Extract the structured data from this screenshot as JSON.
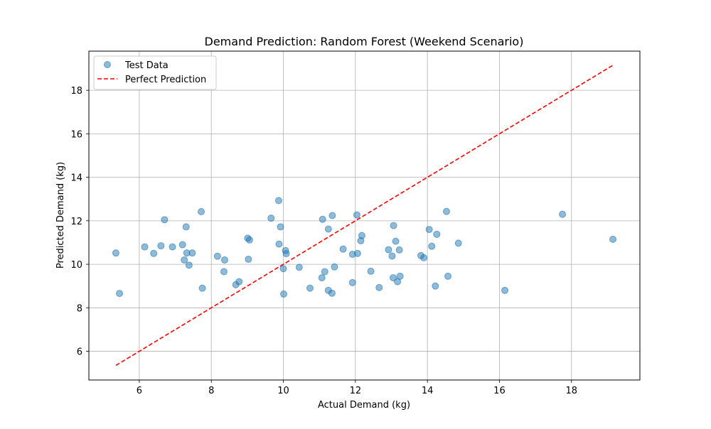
{
  "chart_data": {
    "type": "scatter",
    "title": "Demand Prediction: Random Forest (Weekend Scenario)",
    "xlabel": "Actual Demand (kg)",
    "ylabel": "Predicted Demand (kg)",
    "xlim": [
      4.6,
      19.9
    ],
    "ylim": [
      4.68,
      19.8
    ],
    "xticks": [
      6,
      8,
      10,
      12,
      14,
      16,
      18
    ],
    "yticks": [
      6,
      8,
      10,
      12,
      14,
      16,
      18
    ],
    "grid": true,
    "legend": {
      "placement": "top-left",
      "entries": [
        "Test Data",
        "Perfect Prediction"
      ]
    },
    "series": [
      {
        "name": "Test Data",
        "kind": "points",
        "color": "#1f77b4",
        "points": [
          [
            5.35,
            10.52
          ],
          [
            5.45,
            8.66
          ],
          [
            6.15,
            10.8
          ],
          [
            6.4,
            10.5
          ],
          [
            6.6,
            10.85
          ],
          [
            6.7,
            12.05
          ],
          [
            6.92,
            10.8
          ],
          [
            7.2,
            10.9
          ],
          [
            7.25,
            10.2
          ],
          [
            7.3,
            11.72
          ],
          [
            7.32,
            10.52
          ],
          [
            7.38,
            9.96
          ],
          [
            7.47,
            10.52
          ],
          [
            7.72,
            12.42
          ],
          [
            7.75,
            8.9
          ],
          [
            8.17,
            10.37
          ],
          [
            8.35,
            9.66
          ],
          [
            8.37,
            10.2
          ],
          [
            8.68,
            9.06
          ],
          [
            8.77,
            9.2
          ],
          [
            9.01,
            11.2
          ],
          [
            9.03,
            10.23
          ],
          [
            9.06,
            11.12
          ],
          [
            9.66,
            12.12
          ],
          [
            9.87,
            12.93
          ],
          [
            9.88,
            10.93
          ],
          [
            9.92,
            11.72
          ],
          [
            10.0,
            9.8
          ],
          [
            10.01,
            8.63
          ],
          [
            10.06,
            10.63
          ],
          [
            10.08,
            10.49
          ],
          [
            10.44,
            9.86
          ],
          [
            10.74,
            8.9
          ],
          [
            11.07,
            9.38
          ],
          [
            11.09,
            12.07
          ],
          [
            11.15,
            9.66
          ],
          [
            11.25,
            11.62
          ],
          [
            11.25,
            8.8
          ],
          [
            11.35,
            8.67
          ],
          [
            11.36,
            12.24
          ],
          [
            11.42,
            9.88
          ],
          [
            11.66,
            10.7
          ],
          [
            11.92,
            9.16
          ],
          [
            11.92,
            10.46
          ],
          [
            12.04,
            12.27
          ],
          [
            12.06,
            10.5
          ],
          [
            12.15,
            11.08
          ],
          [
            12.18,
            11.32
          ],
          [
            12.43,
            9.68
          ],
          [
            12.66,
            8.93
          ],
          [
            12.92,
            10.67
          ],
          [
            13.02,
            10.38
          ],
          [
            13.05,
            9.38
          ],
          [
            13.06,
            11.78
          ],
          [
            13.12,
            11.06
          ],
          [
            13.17,
            9.2
          ],
          [
            13.22,
            10.66
          ],
          [
            13.24,
            9.45
          ],
          [
            13.82,
            10.4
          ],
          [
            13.9,
            10.3
          ],
          [
            14.05,
            11.6
          ],
          [
            14.12,
            10.83
          ],
          [
            14.22,
            9.0
          ],
          [
            14.26,
            11.38
          ],
          [
            14.53,
            12.43
          ],
          [
            14.57,
            9.45
          ],
          [
            14.86,
            10.97
          ],
          [
            16.15,
            8.8
          ],
          [
            17.75,
            12.3
          ],
          [
            19.15,
            11.15
          ]
        ]
      },
      {
        "name": "Perfect Prediction",
        "kind": "line",
        "color": "#ff0000",
        "from": [
          5.35,
          5.35
        ],
        "to": [
          19.15,
          19.15
        ]
      }
    ]
  }
}
